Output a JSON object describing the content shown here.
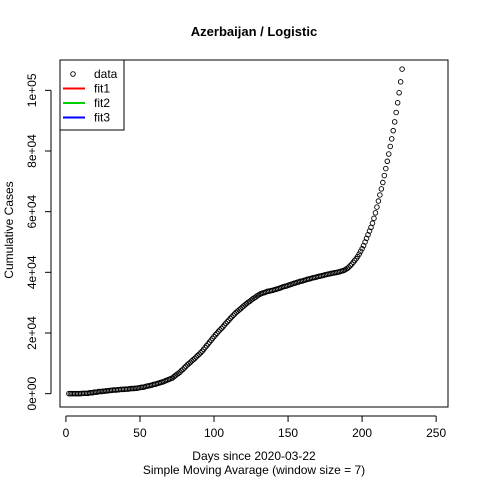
{
  "chart_data": {
    "type": "scatter",
    "title": "Azerbaijan / Logistic",
    "xlabel": "Days since 2020-03-22",
    "subtitle": "Simple Moving Avarage (window size = 7)",
    "ylabel": "Cumulative Cases",
    "xlim": [
      -4,
      258
    ],
    "ylim": [
      -4400,
      110000
    ],
    "x_ticks": [
      0,
      50,
      100,
      150,
      200,
      250
    ],
    "x_tick_labels": [
      "0",
      "50",
      "100",
      "150",
      "200",
      "250"
    ],
    "y_ticks": [
      0,
      20000,
      40000,
      60000,
      80000,
      100000
    ],
    "y_tick_labels": [
      "0e+00",
      "2e+04",
      "4e+04",
      "6e+04",
      "8e+04",
      "1e+05"
    ],
    "grid": false,
    "legend_position": "top-left",
    "legend": [
      {
        "label": "data",
        "kind": "point",
        "color": "#000000"
      },
      {
        "label": "fit1",
        "kind": "line",
        "color": "#ff0000"
      },
      {
        "label": "fit2",
        "kind": "line",
        "color": "#00cd00"
      },
      {
        "label": "fit3",
        "kind": "line",
        "color": "#0000ff"
      }
    ],
    "series": [
      {
        "name": "data",
        "x_start": 2,
        "x_step": 1,
        "values": [
          0,
          0,
          0,
          0,
          0,
          0,
          0,
          0,
          0,
          100,
          100,
          100,
          100,
          100,
          300,
          300,
          300,
          500,
          500,
          500,
          700,
          700,
          700,
          800,
          800,
          900,
          900,
          1000,
          1100,
          1100,
          1200,
          1200,
          1200,
          1300,
          1300,
          1400,
          1400,
          1400,
          1500,
          1500,
          1500,
          1600,
          1700,
          1700,
          1700,
          1800,
          1800,
          1900,
          2000,
          2100,
          2100,
          2200,
          2400,
          2500,
          2600,
          2700,
          2800,
          3000,
          3100,
          3200,
          3400,
          3500,
          3700,
          3800,
          4000,
          4200,
          4400,
          4600,
          4800,
          5000,
          5200,
          5600,
          6000,
          6400,
          6700,
          7100,
          7600,
          8000,
          8500,
          9000,
          9500,
          9900,
          10300,
          10800,
          11200,
          11600,
          12100,
          12600,
          13000,
          13500,
          14000,
          14600,
          15200,
          15800,
          16400,
          17000,
          17600,
          18200,
          18800,
          19400,
          19900,
          20500,
          21000,
          21500,
          22000,
          22600,
          23200,
          23700,
          24200,
          24800,
          25300,
          25800,
          26300,
          26800,
          27200,
          27600,
          28000,
          28500,
          28900,
          29300,
          29700,
          30100,
          30400,
          30800,
          31200,
          31500,
          31800,
          32200,
          32500,
          32800,
          33000,
          33200,
          33300,
          33500,
          33700,
          33800,
          33900,
          34000,
          34100,
          34300,
          34400,
          34600,
          34700,
          34900,
          35100,
          35300,
          35400,
          35500,
          35700,
          35900,
          36000,
          36200,
          36400,
          36500,
          36700,
          36800,
          37000,
          37100,
          37200,
          37400,
          37500,
          37700,
          37800,
          37900,
          38100,
          38200,
          38300,
          38400,
          38600,
          38700,
          38800,
          38900,
          39000,
          39200,
          39300,
          39400,
          39500,
          39600,
          39700,
          39800,
          39900,
          40000,
          40100,
          40200,
          40400,
          40500,
          40700,
          41000,
          41300,
          41700,
          42200,
          42700,
          43300,
          43900,
          44500,
          45200,
          46000,
          46900,
          47800,
          48800,
          50000,
          51200,
          52400,
          53600,
          54800,
          56200,
          57800,
          59600,
          61500,
          63500,
          65500,
          67500,
          69600,
          71900,
          74200,
          76600,
          79000,
          81500,
          84000,
          86700,
          89600,
          92700,
          95900,
          99200,
          102800,
          107000
        ],
        "marker": "open-circle",
        "color": "#000000"
      }
    ]
  }
}
